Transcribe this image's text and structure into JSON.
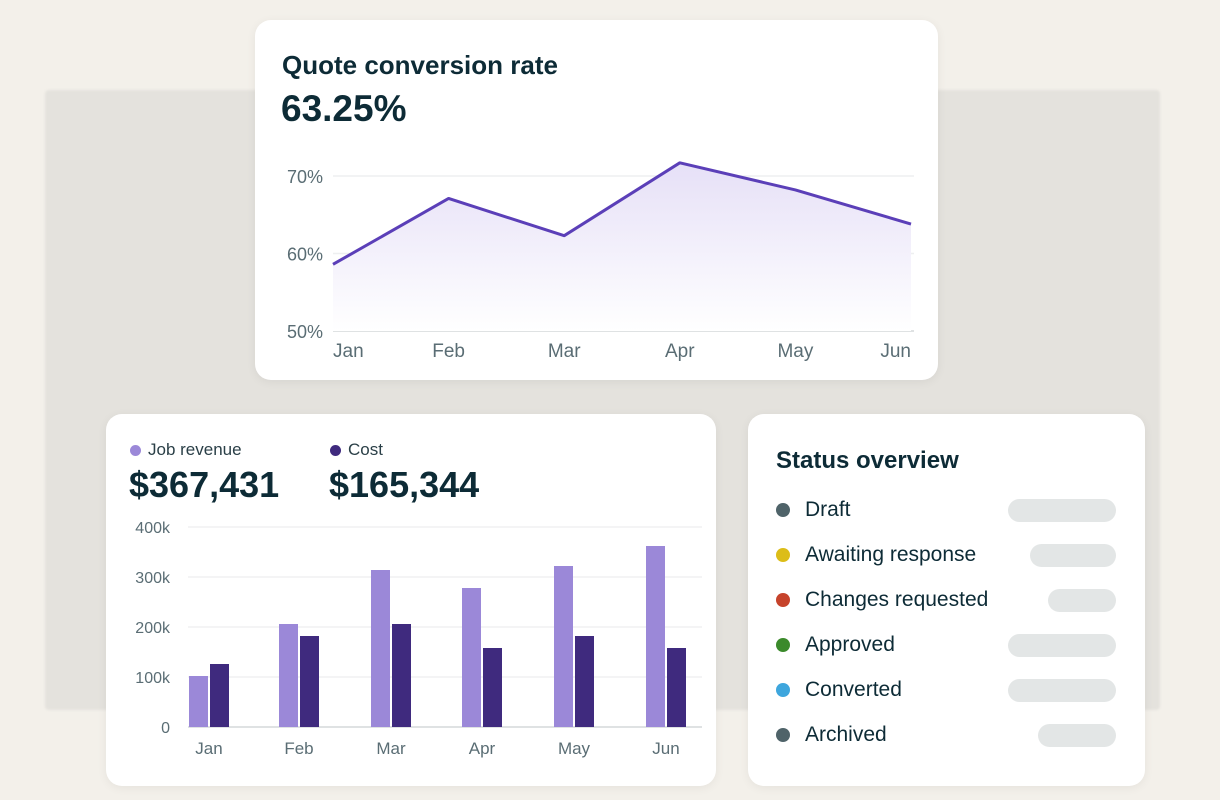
{
  "line_card": {
    "title": "Quote conversion rate",
    "value": "63.25%"
  },
  "bar_card": {
    "legend": [
      {
        "label": "Job revenue",
        "value": "$367,431",
        "color": "#9b88d8"
      },
      {
        "label": "Cost",
        "value": "$165,344",
        "color": "#3f2a7e"
      }
    ]
  },
  "status_card": {
    "title": "Status overview",
    "items": [
      {
        "label": "Draft",
        "color": "#4f6369",
        "fill": 0.95
      },
      {
        "label": "Awaiting response",
        "color": "#dcbd18",
        "fill": 0.75
      },
      {
        "label": "Changes requested",
        "color": "#c6432b",
        "fill": 0.6
      },
      {
        "label": "Approved",
        "color": "#3b8a2b",
        "fill": 0.95
      },
      {
        "label": "Converted",
        "color": "#3ea6dd",
        "fill": 0.95
      },
      {
        "label": "Archived",
        "color": "#4f6369",
        "fill": 0.68
      }
    ]
  },
  "chart_data": [
    {
      "type": "line",
      "title": "Quote conversion rate",
      "categories": [
        "Jan",
        "Feb",
        "Mar",
        "Apr",
        "May",
        "Jun"
      ],
      "values": [
        58.6,
        67.1,
        62.3,
        71.7,
        68.2,
        63.8
      ],
      "ylim": [
        50,
        72
      ],
      "yticks": [
        {
          "v": 50,
          "label": "50%"
        },
        {
          "v": 60,
          "label": "60%"
        },
        {
          "v": 70,
          "label": "70%"
        }
      ],
      "color": "#5b3fb8"
    },
    {
      "type": "bar",
      "categories": [
        "Jan",
        "Feb",
        "Mar",
        "Apr",
        "May",
        "Jun"
      ],
      "series": [
        {
          "name": "Job revenue",
          "values": [
            102000,
            206000,
            314000,
            278000,
            322000,
            362000
          ],
          "color": "#9b88d8"
        },
        {
          "name": "Cost",
          "values": [
            126000,
            182000,
            206000,
            158000,
            182000,
            158000
          ],
          "color": "#3f2a7e"
        }
      ],
      "ylim": [
        0,
        400000
      ],
      "yticks": [
        {
          "v": 0,
          "label": "0"
        },
        {
          "v": 100000,
          "label": "100k"
        },
        {
          "v": 200000,
          "label": "200k"
        },
        {
          "v": 300000,
          "label": "300k"
        },
        {
          "v": 400000,
          "label": "400k"
        }
      ]
    }
  ]
}
